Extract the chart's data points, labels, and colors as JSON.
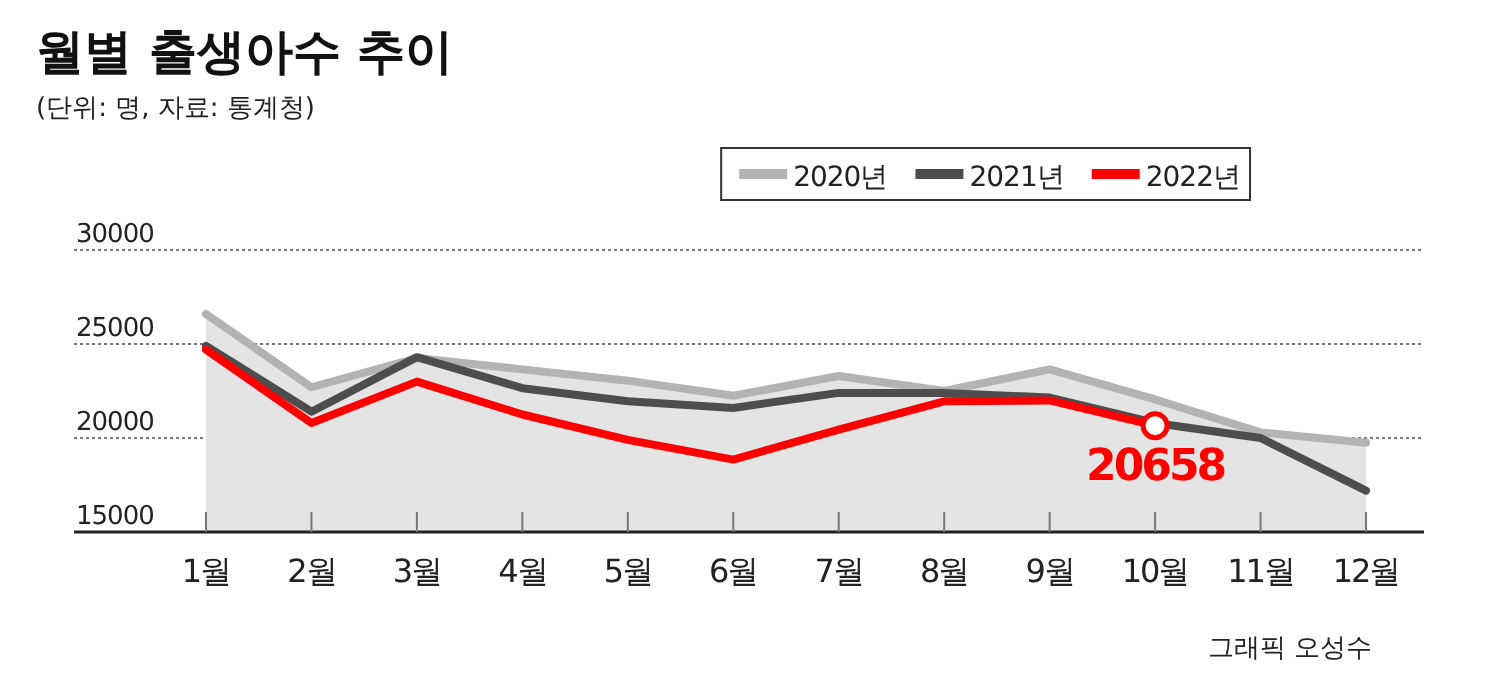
{
  "chart_data": {
    "type": "line",
    "title": "월별 출생아수 추이",
    "subtitle": "(단위: 명, 자료: 통계청)",
    "categories": [
      "1월",
      "2월",
      "3월",
      "4월",
      "5월",
      "6월",
      "7월",
      "8월",
      "9월",
      "10월",
      "11월",
      "12월"
    ],
    "series": [
      {
        "name": "2020년",
        "type": "area",
        "color": "#b3b3b3",
        "values": [
          26600,
          22700,
          24250,
          23650,
          23050,
          22250,
          23300,
          22500,
          23650,
          22050,
          20300,
          19750
        ]
      },
      {
        "name": "2021년",
        "color": "#4d4d4d",
        "values": [
          24900,
          21400,
          24300,
          22650,
          21950,
          21600,
          22400,
          22400,
          22150,
          20800,
          20000,
          17200
        ]
      },
      {
        "name": "2022년",
        "color": "#ff0000",
        "values": [
          24700,
          20800,
          23000,
          21250,
          19900,
          18850,
          20450,
          21950,
          22000,
          20658,
          null,
          null
        ]
      }
    ],
    "ylim": [
      15000,
      30000
    ],
    "yticks": [
      15000,
      20000,
      25000,
      30000
    ],
    "grid": "y",
    "legend": "top right",
    "annotations": [
      {
        "text": "20658",
        "x": "10월",
        "y": 20658
      },
      "그래픽 오성수"
    ]
  }
}
